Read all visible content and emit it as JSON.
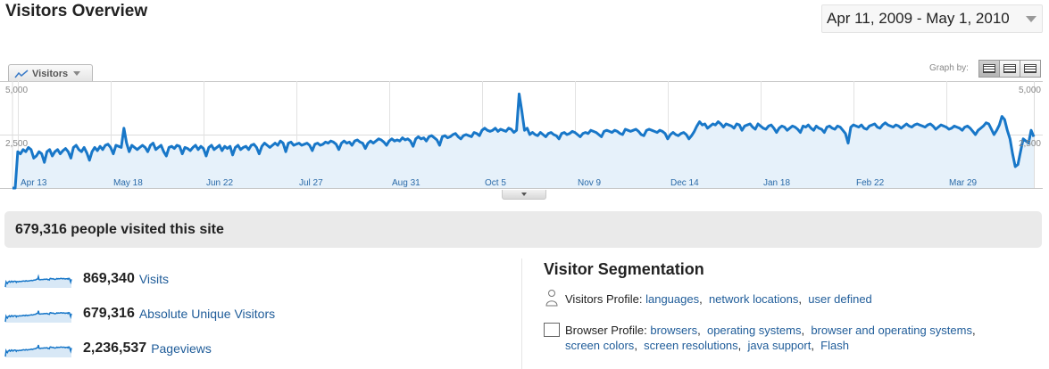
{
  "header": {
    "title": "Visitors Overview",
    "date_range": "Apr 11, 2009 - May 1, 2010"
  },
  "graph": {
    "metric_tab": "Visitors",
    "graph_by_label": "Graph by:",
    "colors": {
      "line": "#1877c8",
      "fill": "#e6f1fa"
    }
  },
  "chart_data": {
    "type": "area",
    "yticks_left": [
      "5,000",
      "2,500"
    ],
    "yticks_right": [
      "5,000",
      "2,500"
    ],
    "ylim": [
      0,
      5000
    ],
    "x_labels": [
      "Apr 13",
      "May 18",
      "Jun 22",
      "Jul 27",
      "Aug 31",
      "Oct 5",
      "Nov 9",
      "Dec 14",
      "Jan 18",
      "Feb 22",
      "Mar 29"
    ],
    "x_label_index": [
      2,
      37,
      72,
      107,
      142,
      177,
      212,
      247,
      282,
      317,
      352
    ],
    "series": [
      {
        "values": [
          0,
          0,
          1700,
          1600,
          1800,
          1700,
          1900,
          1800,
          1400,
          1500,
          1700,
          1600,
          1200,
          1700,
          1800,
          1500,
          1700,
          1800,
          1600,
          1750,
          1850,
          1700,
          1400,
          1900,
          2000,
          1800,
          1700,
          1900,
          1650,
          1300,
          1700,
          1900,
          1750,
          1950,
          1800,
          2000,
          2050,
          1900,
          1600,
          2000,
          1950,
          1900,
          2800,
          2100,
          1700,
          2000,
          1900,
          1800,
          1900,
          2000,
          1900,
          1700,
          2000,
          2100,
          1800,
          1900,
          2000,
          1700,
          1500,
          1900,
          1950,
          1850,
          2000,
          1950,
          1600,
          1900,
          1850,
          1750,
          1900,
          2000,
          1800,
          1950,
          1850,
          1500,
          1900,
          2000,
          1800,
          1900,
          2000,
          1750,
          1950,
          1850,
          1950,
          1550,
          1900,
          2000,
          1800,
          1900,
          1950,
          1800,
          2000,
          2050,
          1900,
          1600,
          1950,
          2100,
          2000,
          1900,
          2000,
          2100,
          2000,
          2200,
          2100,
          1700,
          2100,
          2150,
          2000,
          2050,
          2100,
          2000,
          2050,
          2100,
          2000,
          1750,
          2050,
          2100,
          2000,
          2050,
          2150,
          2100,
          2200,
          2150,
          2050,
          1800,
          2100,
          2200,
          2100,
          2150,
          2000,
          2200,
          2250,
          2150,
          2100,
          1850,
          2100,
          2200,
          2100,
          2200,
          2300,
          2250,
          2150,
          2000,
          2200,
          2300,
          2200,
          2250,
          2200,
          2350,
          2250,
          2300,
          2200,
          1950,
          2300,
          2400,
          2300,
          2350,
          2200,
          2400,
          2450,
          2350,
          2250,
          2000,
          2400,
          2450,
          2350,
          2400,
          2500,
          2550,
          2400,
          2300,
          2450,
          2500,
          2450,
          2400,
          2600,
          2550,
          2450,
          2700,
          2800,
          2700,
          2650,
          2700,
          2800,
          2650,
          2750,
          2700,
          2650,
          2800,
          2750,
          2600,
          2700,
          4400,
          3600,
          2700,
          2800,
          2500,
          2600,
          2500,
          2450,
          2600,
          2500,
          2400,
          2550,
          2600,
          2500,
          2450,
          2300,
          2550,
          2600,
          2500,
          2550,
          2650,
          2600,
          2500,
          2400,
          2550,
          2600,
          2550,
          2700,
          2650,
          2600,
          2500,
          2400,
          2650,
          2700,
          2650,
          2600,
          2700,
          2650,
          2550,
          2500,
          2750,
          2700,
          2650,
          2700,
          2750,
          2650,
          2500,
          2450,
          2700,
          2750,
          2700,
          2650,
          2600,
          2700,
          2650,
          2550,
          2300,
          2500,
          2600,
          2500,
          2450,
          2550,
          2600,
          2500,
          2300,
          2450,
          2650,
          2900,
          3100,
          2950,
          3000,
          2800,
          2900,
          3000,
          2950,
          3100,
          3000,
          2850,
          3000,
          2950,
          2900,
          2800,
          3000,
          2950,
          2700,
          2900,
          2950,
          3000,
          2850,
          2750,
          3000,
          2900,
          2800,
          2750,
          2900,
          2950,
          2800,
          2600,
          2800,
          2900,
          2850,
          2700,
          2800,
          2900,
          2850,
          2750,
          2600,
          2900,
          2850,
          2950,
          2800,
          2700,
          2900,
          2800,
          2750,
          2600,
          2850,
          2900,
          2800,
          2750,
          2900,
          2850,
          2700,
          2550,
          2100,
          2850,
          2950,
          2900,
          2850,
          2950,
          2800,
          2750,
          2900,
          2950,
          3000,
          2850,
          2800,
          2950,
          3050,
          2950,
          2900,
          2850,
          2950,
          2900,
          2800,
          2900,
          3000,
          2900,
          2850,
          2950,
          3000,
          2950,
          2900,
          2850,
          2950,
          3000,
          2900,
          2750,
          2850,
          2950,
          2900,
          2850,
          2750,
          2800,
          2900,
          2850,
          2800,
          2700,
          2850,
          2900,
          2800,
          2650,
          2500,
          2700,
          2800,
          2900,
          3050,
          3000,
          2750,
          2500,
          2700,
          2950,
          3350,
          3200,
          2700,
          2300,
          1600,
          1000,
          1100,
          1700,
          2300,
          2200,
          2100,
          2700,
          2400
        ]
      }
    ]
  },
  "summary": {
    "text": "679,316 people visited this site"
  },
  "stats": [
    {
      "value": "869,340",
      "label": "Visits"
    },
    {
      "value": "679,316",
      "label": "Absolute Unique Visitors"
    },
    {
      "value": "2,236,537",
      "label": "Pageviews"
    }
  ],
  "segmentation": {
    "title": "Visitor Segmentation",
    "visitors_profile": {
      "label": "Visitors Profile:",
      "links": [
        "languages",
        "network locations",
        "user defined"
      ]
    },
    "browser_profile": {
      "label": "Browser Profile:",
      "links": [
        "browsers",
        "operating systems",
        "browser and operating systems",
        "screen colors",
        "screen resolutions",
        "java support",
        "Flash"
      ]
    }
  }
}
